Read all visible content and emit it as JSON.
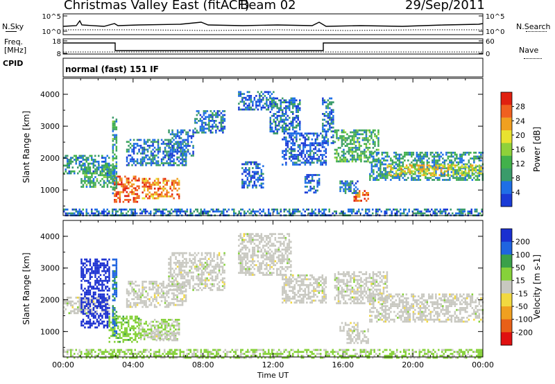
{
  "header": {
    "station": "Christmas Valley East (fitACF)",
    "beam": "Beam 02",
    "date": "29/Sep/2011"
  },
  "top_strip": {
    "left_label": "N.Sky",
    "left_ticks": [
      "10^5",
      "10^0"
    ],
    "right_label": "N.Search",
    "right_ticks": [
      "10^5",
      "10^0"
    ]
  },
  "freq_strip": {
    "left_label_line1": "Freq.",
    "left_label_line2": "[MHz]",
    "left_ticks": [
      "18",
      "8"
    ],
    "right_label": "Nave",
    "right_ticks": [
      "60",
      "0"
    ]
  },
  "cpid": {
    "label": "CPID",
    "value": "normal (fast) 151 IF"
  },
  "colors": {
    "power": [
      "#1a3bd6",
      "#1f6fe6",
      "#3a9b6a",
      "#42b14b",
      "#8fd13a",
      "#e8e230",
      "#f0a020",
      "#f06020",
      "#e02010"
    ],
    "velocity": [
      "#1a2fd0",
      "#1f64e0",
      "#3aa049",
      "#86d13a",
      "#c8c8c0",
      "#f2d940",
      "#f0a020",
      "#e86018",
      "#e01010"
    ]
  },
  "chart_data": [
    {
      "type": "heatmap",
      "parameter": "power",
      "ylabel": "Slant Range [km]",
      "ylim": [
        200,
        4500
      ],
      "yticks": [
        "1000",
        "2000",
        "3000",
        "4000"
      ],
      "xlim": [
        0,
        24
      ],
      "colorbar": {
        "label": "Power [dB]",
        "ticks": [
          "4",
          "8",
          "12",
          "16",
          "20",
          "24",
          "28"
        ],
        "range": [
          0,
          32
        ]
      },
      "regions": [
        {
          "t0": 0.0,
          "t1": 2.6,
          "r0": 1550,
          "r1": 2100,
          "value": 8
        },
        {
          "t0": 1.0,
          "t1": 2.9,
          "r0": 1100,
          "r1": 1800,
          "value": 10
        },
        {
          "t0": 2.9,
          "t1": 4.3,
          "r0": 650,
          "r1": 1450,
          "value": 27
        },
        {
          "t0": 4.5,
          "t1": 6.6,
          "r0": 720,
          "r1": 1380,
          "value": 25
        },
        {
          "t0": 2.8,
          "t1": 3.0,
          "r0": 900,
          "r1": 3300,
          "value": 10
        },
        {
          "t0": 3.6,
          "t1": 7.0,
          "r0": 1750,
          "r1": 2600,
          "value": 6
        },
        {
          "t0": 6.0,
          "t1": 7.4,
          "r0": 2100,
          "r1": 2900,
          "value": 5
        },
        {
          "t0": 7.5,
          "t1": 9.2,
          "r0": 2800,
          "r1": 3500,
          "value": 6
        },
        {
          "t0": 10.0,
          "t1": 12.0,
          "r0": 3500,
          "r1": 4100,
          "value": 5
        },
        {
          "t0": 11.8,
          "t1": 13.5,
          "r0": 2800,
          "r1": 3900,
          "value": 6
        },
        {
          "t0": 12.5,
          "t1": 15.0,
          "r0": 1800,
          "r1": 2800,
          "value": 4
        },
        {
          "t0": 10.2,
          "t1": 11.4,
          "r0": 1100,
          "r1": 1900,
          "value": 4
        },
        {
          "t0": 14.8,
          "t1": 15.4,
          "r0": 2400,
          "r1": 3900,
          "value": 6
        },
        {
          "t0": 15.5,
          "t1": 18.0,
          "r0": 1900,
          "r1": 2900,
          "value": 11
        },
        {
          "t0": 17.5,
          "t1": 24.0,
          "r0": 1300,
          "r1": 2200,
          "value": 9
        },
        {
          "t0": 18.5,
          "t1": 24.0,
          "r0": 1450,
          "r1": 1800,
          "value": 20
        },
        {
          "t0": 16.6,
          "t1": 17.4,
          "r0": 650,
          "r1": 1000,
          "value": 26
        },
        {
          "t0": 15.8,
          "t1": 16.8,
          "r0": 900,
          "r1": 1300,
          "value": 6
        },
        {
          "t0": 13.8,
          "t1": 14.6,
          "r0": 900,
          "r1": 1500,
          "value": 4
        },
        {
          "t0": 0.0,
          "t1": 24.0,
          "r0": 200,
          "r1": 420,
          "value": 6
        }
      ]
    },
    {
      "type": "heatmap",
      "parameter": "velocity",
      "ylabel": "Slant Range [km]",
      "ylim": [
        200,
        4500
      ],
      "yticks": [
        "1000",
        "2000",
        "3000",
        "4000"
      ],
      "xlim": [
        0,
        24
      ],
      "xlabel": "Time UT",
      "xticks": [
        "00:00",
        "04:00",
        "08:00",
        "12:00",
        "16:00",
        "20:00",
        "00:00"
      ],
      "colorbar": {
        "label": "Velocity [m s-1]",
        "ticks": [
          "200",
          "100",
          "50",
          "15",
          "-15",
          "-50",
          "-100",
          "-200"
        ],
        "range": [
          -250,
          250
        ]
      },
      "regions": [
        {
          "t0": 0.0,
          "t1": 2.6,
          "r0": 1550,
          "r1": 2100,
          "value": 0
        },
        {
          "t0": 1.0,
          "t1": 2.6,
          "r0": 1100,
          "r1": 3300,
          "value": 230
        },
        {
          "t0": 2.6,
          "t1": 4.3,
          "r0": 700,
          "r1": 1500,
          "value": 60
        },
        {
          "t0": 4.3,
          "t1": 6.6,
          "r0": 750,
          "r1": 1400,
          "value": 30
        },
        {
          "t0": 5.0,
          "t1": 6.6,
          "r0": 750,
          "r1": 1000,
          "value": 0
        },
        {
          "t0": 2.8,
          "t1": 3.0,
          "r0": 900,
          "r1": 3300,
          "value": 150
        },
        {
          "t0": 3.6,
          "t1": 7.0,
          "r0": 1750,
          "r1": 2600,
          "value": 0
        },
        {
          "t0": 6.0,
          "t1": 9.2,
          "r0": 2300,
          "r1": 3500,
          "value": 0
        },
        {
          "t0": 10.0,
          "t1": 13.0,
          "r0": 2800,
          "r1": 4100,
          "value": 0
        },
        {
          "t0": 12.5,
          "t1": 15.0,
          "r0": 1900,
          "r1": 2800,
          "value": 0
        },
        {
          "t0": 15.5,
          "t1": 18.5,
          "r0": 1900,
          "r1": 2900,
          "value": 0
        },
        {
          "t0": 17.5,
          "t1": 24.0,
          "r0": 1300,
          "r1": 2200,
          "value": 0
        },
        {
          "t0": 16.2,
          "t1": 17.4,
          "r0": 650,
          "r1": 1100,
          "value": 0
        },
        {
          "t0": 15.8,
          "t1": 16.8,
          "r0": 1000,
          "r1": 1300,
          "value": 0
        },
        {
          "t0": 0.0,
          "t1": 24.0,
          "r0": 200,
          "r1": 450,
          "value": 40
        }
      ]
    }
  ]
}
